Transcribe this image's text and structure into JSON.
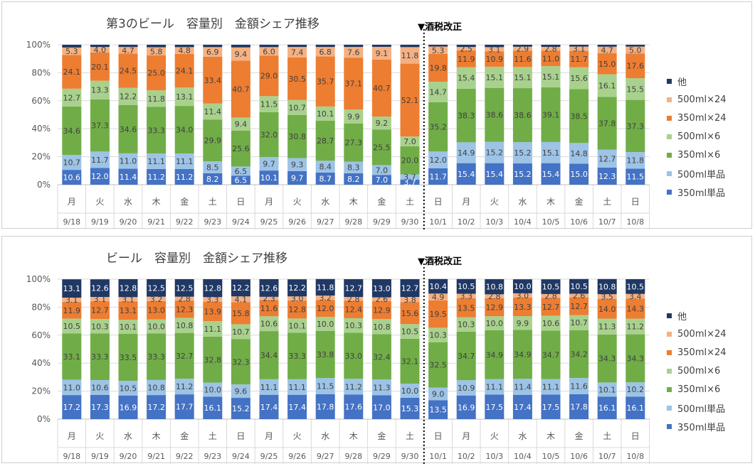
{
  "annotation": "▼酒税改正",
  "legend_order": [
    "他",
    "500ml×24",
    "350ml×24",
    "500ml×6",
    "350ml×6",
    "500ml単品",
    "350ml単品"
  ],
  "colors": {
    "350ml単品": "#4472c4",
    "500ml単品": "#9dc3e6",
    "350ml×6": "#70ad47",
    "500ml×6": "#a9d18e",
    "350ml×24": "#ed7d31",
    "500ml×24": "#f4b183",
    "他": "#203864"
  },
  "chart_data": [
    {
      "type": "bar",
      "stacked": true,
      "title": "第3のビール　容量別　金額シェア推移",
      "categories": [
        "9/18",
        "9/19",
        "9/20",
        "9/21",
        "9/22",
        "9/23",
        "9/24",
        "9/25",
        "9/26",
        "9/27",
        "9/28",
        "9/29",
        "9/30",
        "10/1",
        "10/2",
        "10/3",
        "10/4",
        "10/5",
        "10/6",
        "10/7",
        "10/8"
      ],
      "weekdays": [
        "月",
        "火",
        "水",
        "木",
        "金",
        "土",
        "日",
        "月",
        "火",
        "水",
        "木",
        "金",
        "土",
        "日",
        "月",
        "火",
        "水",
        "木",
        "金",
        "土",
        "日"
      ],
      "ylim": [
        0,
        100
      ],
      "yticks": [
        "0%",
        "20%",
        "40%",
        "60%",
        "80%",
        "100%"
      ],
      "series": [
        {
          "name": "350ml単品",
          "values": [
            10.6,
            12.0,
            11.4,
            11.2,
            11.2,
            8.2,
            6.5,
            10.1,
            9.7,
            8.7,
            8.2,
            7.0,
            3.7,
            11.7,
            15.4,
            15.4,
            15.2,
            15.4,
            15.0,
            12.3,
            11.5
          ]
        },
        {
          "name": "500ml単品",
          "values": [
            10.7,
            11.7,
            11.0,
            11.1,
            11.1,
            8.5,
            6.5,
            9.7,
            9.3,
            8.4,
            8.3,
            7.0,
            3.7,
            12.0,
            14.9,
            15.2,
            15.2,
            15.1,
            14.8,
            12.7,
            11.8
          ]
        },
        {
          "name": "350ml×6",
          "values": [
            34.6,
            37.3,
            34.6,
            33.3,
            34.0,
            29.9,
            25.6,
            32.0,
            30.8,
            28.7,
            27.3,
            25.5,
            20.0,
            35.2,
            38.3,
            38.6,
            38.6,
            39.1,
            38.5,
            37.8,
            37.3
          ]
        },
        {
          "name": "500ml×6",
          "values": [
            12.7,
            13.3,
            12.2,
            11.8,
            13.1,
            11.4,
            9.4,
            11.5,
            10.7,
            10.1,
            9.9,
            9.2,
            7.0,
            14.7,
            15.4,
            15.1,
            15.1,
            15.1,
            15.6,
            16.1,
            15.5
          ]
        },
        {
          "name": "350ml×24",
          "values": [
            24.1,
            20.1,
            24.5,
            25.0,
            24.1,
            33.4,
            40.7,
            29.0,
            30.5,
            35.7,
            37.1,
            40.7,
            52.1,
            19.8,
            11.9,
            10.9,
            11.6,
            11.0,
            11.7,
            15.0,
            17.6
          ]
        },
        {
          "name": "500ml×24",
          "values": [
            5.3,
            4.0,
            4.7,
            5.8,
            4.8,
            6.9,
            9.4,
            6.0,
            7.4,
            6.8,
            7.6,
            9.1,
            11.8,
            5.3,
            2.5,
            3.1,
            2.9,
            2.8,
            3.1,
            4.7,
            5.0
          ]
        },
        {
          "name": "他",
          "values": [
            2.0,
            1.6,
            1.6,
            1.8,
            1.7,
            1.7,
            1.9,
            1.7,
            1.6,
            1.6,
            1.6,
            1.5,
            1.7,
            1.3,
            1.6,
            1.7,
            1.4,
            1.5,
            1.3,
            1.4,
            1.3
          ]
        }
      ]
    },
    {
      "type": "bar",
      "stacked": true,
      "title": "ビール　容量別　金額シェア推移",
      "categories": [
        "9/18",
        "9/19",
        "9/20",
        "9/21",
        "9/22",
        "9/23",
        "9/24",
        "9/25",
        "9/26",
        "9/27",
        "9/28",
        "9/29",
        "9/30",
        "10/1",
        "10/2",
        "10/3",
        "10/4",
        "10/5",
        "10/6",
        "10/7",
        "10/8"
      ],
      "weekdays": [
        "月",
        "火",
        "水",
        "木",
        "金",
        "土",
        "日",
        "月",
        "火",
        "水",
        "木",
        "金",
        "土",
        "日",
        "月",
        "火",
        "水",
        "木",
        "金",
        "土",
        "日"
      ],
      "ylim": [
        0,
        100
      ],
      "yticks": [
        "0%",
        "20%",
        "40%",
        "60%",
        "80%",
        "100%"
      ],
      "series": [
        {
          "name": "350ml単品",
          "values": [
            17.2,
            17.3,
            16.9,
            17.2,
            17.7,
            16.1,
            15.2,
            17.4,
            17.4,
            17.8,
            17.6,
            17.0,
            15.3,
            13.5,
            16.9,
            17.5,
            17.4,
            17.5,
            17.8,
            16.1,
            16.1
          ]
        },
        {
          "name": "500ml単品",
          "values": [
            11.0,
            10.6,
            10.5,
            10.8,
            11.2,
            10.0,
            9.6,
            11.1,
            11.1,
            11.5,
            11.2,
            11.3,
            10.0,
            9.0,
            10.9,
            11.1,
            11.4,
            11.1,
            11.6,
            10.1,
            10.2
          ]
        },
        {
          "name": "350ml×6",
          "values": [
            33.1,
            33.3,
            33.5,
            33.3,
            32.7,
            32.8,
            32.3,
            34.4,
            33.3,
            33.8,
            33.0,
            32.4,
            32.1,
            32.5,
            34.7,
            34.9,
            34.9,
            34.7,
            34.2,
            34.3,
            34.3
          ]
        },
        {
          "name": "500ml×6",
          "values": [
            10.5,
            10.3,
            10.1,
            10.0,
            10.8,
            11.1,
            10.7,
            10.6,
            10.1,
            10.0,
            10.3,
            10.8,
            10.5,
            10.3,
            10.3,
            10.0,
            9.9,
            10.6,
            10.7,
            11.3,
            11.2
          ]
        },
        {
          "name": "350ml×24",
          "values": [
            11.9,
            12.7,
            13.1,
            13.0,
            12.3,
            13.9,
            15.8,
            11.6,
            12.8,
            12.0,
            12.4,
            12.9,
            15.6,
            19.5,
            13.5,
            12.9,
            13.3,
            12.7,
            12.7,
            14.0,
            14.3
          ]
        },
        {
          "name": "500ml×24",
          "values": [
            3.1,
            3.1,
            3.1,
            3.2,
            2.8,
            3.3,
            4.1,
            2.3,
            3.0,
            3.2,
            2.8,
            2.6,
            3.8,
            4.9,
            3.3,
            2.8,
            3.0,
            2.8,
            2.6,
            3.5,
            3.4
          ]
        },
        {
          "name": "他",
          "values": [
            13.1,
            12.6,
            12.8,
            12.5,
            12.5,
            12.8,
            12.2,
            12.6,
            12.2,
            11.8,
            12.7,
            13.0,
            12.7,
            10.4,
            10.5,
            10.8,
            10.0,
            10.5,
            10.5,
            10.8,
            10.5
          ]
        }
      ]
    }
  ]
}
